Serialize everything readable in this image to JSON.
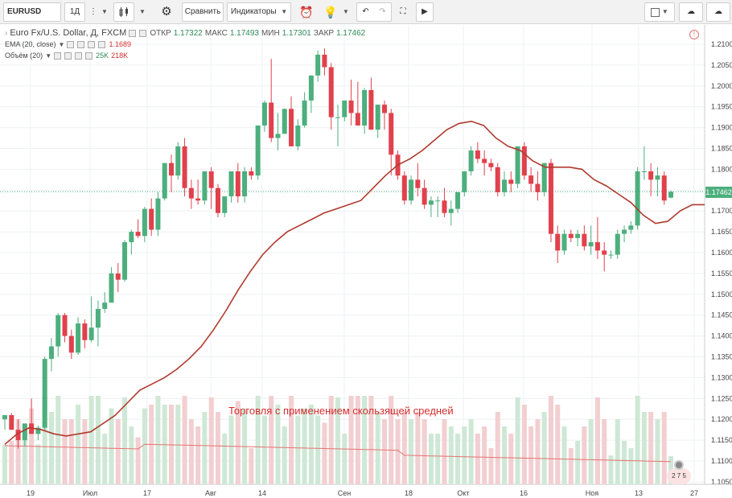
{
  "toolbar": {
    "symbol": "EURUSD",
    "interval": "1Д",
    "compare_label": "Сравнить",
    "indicators_label": "Индикаторы",
    "icons": [
      "menu-dots-icon",
      "candle-style-icon",
      "gear-icon",
      "alarm-add-icon",
      "lightbulb-icon",
      "undo-icon",
      "redo-icon",
      "fullscreen-icon",
      "play-icon",
      "layout-icon",
      "cloud-load-icon",
      "cloud-save-icon"
    ]
  },
  "legend": {
    "title": "Euro Fx/U.S. Dollar, Д, FXCM",
    "open_label": "ОТКР",
    "open": "1.17322",
    "high_label": "МАКС",
    "high": "1.17493",
    "low_label": "МИН",
    "low": "1.17301",
    "close_label": "ЗАКР",
    "close": "1.17462",
    "ema_label": "EMA (20, close)",
    "ema_value": "1.1689",
    "volume_label": "Объём (20)",
    "volume_up": "25K",
    "volume_down": "218K"
  },
  "annotation": "Торговля с применением скользящей средней",
  "events_badge": "2 7 5",
  "colors": {
    "up": "#4caf7d",
    "down": "#e0414c",
    "ema": "#b03a2e",
    "vol_up": "#cfe8d6",
    "vol_down": "#f2cfd1",
    "vol_ma": "#e57373",
    "grid": "#eef0f3"
  },
  "chart_data": {
    "type": "candlestick",
    "symbol": "Euro Fx/U.S. Dollar",
    "interval": "Д",
    "ylim": [
      1.104,
      1.212
    ],
    "y_ticks": [
      "1.21000",
      "1.20500",
      "1.20000",
      "1.19500",
      "1.19000",
      "1.18500",
      "1.18000",
      "1.17500",
      "1.17000",
      "1.16500",
      "1.16000",
      "1.15500",
      "1.15000",
      "1.14500",
      "1.14000",
      "1.13500",
      "1.13000",
      "1.12500",
      "1.12000",
      "1.11500",
      "1.11000",
      "1.10500"
    ],
    "x_ticks": [
      "19",
      "Июл",
      "17",
      "Авг",
      "14",
      "Сен",
      "18",
      "Окт",
      "16",
      "Ноя",
      "13",
      "27"
    ],
    "last_price": "1.17462",
    "ema_series": [
      1.114,
      1.1165,
      1.118,
      1.1175,
      1.1165,
      1.116,
      1.1165,
      1.117,
      1.119,
      1.121,
      1.124,
      1.127,
      1.1285,
      1.13,
      1.132,
      1.1345,
      1.1375,
      1.1415,
      1.146,
      1.151,
      1.1555,
      1.1595,
      1.1625,
      1.165,
      1.1665,
      1.168,
      1.1695,
      1.1705,
      1.1715,
      1.1725,
      1.1755,
      1.1785,
      1.181,
      1.1825,
      1.1845,
      1.187,
      1.1895,
      1.191,
      1.1915,
      1.1905,
      1.1875,
      1.1855,
      1.1845,
      1.182,
      1.1805,
      1.1805,
      1.1805,
      1.18,
      1.1775,
      1.176,
      1.174,
      1.172,
      1.169,
      1.167,
      1.1675,
      1.17,
      1.1715,
      1.1715
    ],
    "candles": [
      [
        1.12,
        1.121,
        1.1175,
        1.121
      ],
      [
        1.121,
        1.1215,
        1.1175,
        1.1175
      ],
      [
        1.1175,
        1.12,
        1.113,
        1.115
      ],
      [
        1.115,
        1.119,
        1.1135,
        1.119
      ],
      [
        1.119,
        1.125,
        1.1165,
        1.1165
      ],
      [
        1.1165,
        1.1185,
        1.115,
        1.118
      ],
      [
        1.118,
        1.135,
        1.1175,
        1.1345
      ],
      [
        1.1345,
        1.1395,
        1.1315,
        1.1375
      ],
      [
        1.1375,
        1.1455,
        1.135,
        1.145
      ],
      [
        1.145,
        1.1455,
        1.1385,
        1.14
      ],
      [
        1.14,
        1.1415,
        1.1345,
        1.136
      ],
      [
        1.136,
        1.1445,
        1.1355,
        1.143
      ],
      [
        1.143,
        1.144,
        1.137,
        1.139
      ],
      [
        1.139,
        1.1495,
        1.1385,
        1.142
      ],
      [
        1.142,
        1.1485,
        1.1375,
        1.1465
      ],
      [
        1.1465,
        1.1505,
        1.1455,
        1.148
      ],
      [
        1.148,
        1.1565,
        1.148,
        1.155
      ],
      [
        1.155,
        1.1575,
        1.1505,
        1.1535
      ],
      [
        1.1535,
        1.163,
        1.153,
        1.1625
      ],
      [
        1.1625,
        1.1655,
        1.1595,
        1.165
      ],
      [
        1.165,
        1.168,
        1.1635,
        1.164
      ],
      [
        1.164,
        1.171,
        1.1625,
        1.1705
      ],
      [
        1.1705,
        1.173,
        1.164,
        1.1655
      ],
      [
        1.1655,
        1.1745,
        1.164,
        1.173
      ],
      [
        1.173,
        1.1815,
        1.1725,
        1.1815
      ],
      [
        1.1815,
        1.1835,
        1.1745,
        1.1785
      ],
      [
        1.1785,
        1.1865,
        1.1775,
        1.1855
      ],
      [
        1.1855,
        1.1875,
        1.1735,
        1.1755
      ],
      [
        1.1755,
        1.1775,
        1.1705,
        1.173
      ],
      [
        1.173,
        1.1775,
        1.1715,
        1.1725
      ],
      [
        1.1725,
        1.1795,
        1.1715,
        1.1795
      ],
      [
        1.1795,
        1.1805,
        1.1705,
        1.1755
      ],
      [
        1.1755,
        1.1765,
        1.1685,
        1.1695
      ],
      [
        1.1695,
        1.1735,
        1.1685,
        1.1735
      ],
      [
        1.1735,
        1.1795,
        1.172,
        1.1795
      ],
      [
        1.1795,
        1.1815,
        1.172,
        1.1735
      ],
      [
        1.1735,
        1.1805,
        1.172,
        1.1795
      ],
      [
        1.1795,
        1.1805,
        1.1775,
        1.1785
      ],
      [
        1.1785,
        1.1905,
        1.1775,
        1.1905
      ],
      [
        1.1905,
        1.1965,
        1.189,
        1.196
      ],
      [
        1.196,
        1.2065,
        1.1865,
        1.1875
      ],
      [
        1.1875,
        1.1935,
        1.1845,
        1.1885
      ],
      [
        1.1885,
        1.1945,
        1.1885,
        1.1945
      ],
      [
        1.1945,
        1.1975,
        1.1855,
        1.1855
      ],
      [
        1.1855,
        1.192,
        1.1845,
        1.1905
      ],
      [
        1.1905,
        1.1985,
        1.19,
        1.1965
      ],
      [
        1.1965,
        1.2025,
        1.1935,
        1.2025
      ],
      [
        1.2025,
        1.2085,
        1.201,
        1.2075
      ],
      [
        1.2075,
        1.209,
        1.2025,
        1.2045
      ],
      [
        1.2045,
        1.2055,
        1.1895,
        1.1925
      ],
      [
        1.1925,
        1.1955,
        1.1855,
        1.1925
      ],
      [
        1.1925,
        1.1965,
        1.1915,
        1.1965
      ],
      [
        1.1965,
        1.2015,
        1.1905,
        1.1935
      ],
      [
        1.1935,
        1.201,
        1.1905,
        1.1905
      ],
      [
        1.1905,
        1.1995,
        1.1885,
        1.199
      ],
      [
        1.199,
        1.202,
        1.1895,
        1.1895
      ],
      [
        1.1895,
        1.1955,
        1.1875,
        1.1955
      ],
      [
        1.1955,
        1.1965,
        1.1895,
        1.1935
      ],
      [
        1.1935,
        1.1945,
        1.1785,
        1.1835
      ],
      [
        1.1835,
        1.1845,
        1.1775,
        1.1785
      ],
      [
        1.1785,
        1.1795,
        1.1715,
        1.1725
      ],
      [
        1.1725,
        1.1785,
        1.1715,
        1.1775
      ],
      [
        1.1775,
        1.1815,
        1.1735,
        1.1755
      ],
      [
        1.1755,
        1.1775,
        1.1705,
        1.1715
      ],
      [
        1.1715,
        1.1735,
        1.1685,
        1.1725
      ],
      [
        1.1725,
        1.1735,
        1.1685,
        1.1725
      ],
      [
        1.1725,
        1.1755,
        1.1685,
        1.1695
      ],
      [
        1.1695,
        1.1725,
        1.1665,
        1.1705
      ],
      [
        1.1705,
        1.1745,
        1.1695,
        1.1745
      ],
      [
        1.1745,
        1.1795,
        1.1735,
        1.1795
      ],
      [
        1.1795,
        1.1855,
        1.1785,
        1.1845
      ],
      [
        1.1845,
        1.1865,
        1.1815,
        1.1825
      ],
      [
        1.1825,
        1.1845,
        1.1785,
        1.1815
      ],
      [
        1.1815,
        1.1825,
        1.1795,
        1.1805
      ],
      [
        1.1805,
        1.1815,
        1.1735,
        1.1745
      ],
      [
        1.1745,
        1.1795,
        1.1735,
        1.1775
      ],
      [
        1.1775,
        1.1795,
        1.1745,
        1.1765
      ],
      [
        1.1765,
        1.1855,
        1.1755,
        1.1855
      ],
      [
        1.1855,
        1.1865,
        1.1775,
        1.1785
      ],
      [
        1.1785,
        1.1805,
        1.1745,
        1.1765
      ],
      [
        1.1765,
        1.1795,
        1.1725,
        1.1745
      ],
      [
        1.1745,
        1.1815,
        1.1735,
        1.1815
      ],
      [
        1.1815,
        1.1825,
        1.1625,
        1.1645
      ],
      [
        1.1645,
        1.1665,
        1.1575,
        1.1605
      ],
      [
        1.1605,
        1.1655,
        1.1595,
        1.1645
      ],
      [
        1.1645,
        1.1655,
        1.1625,
        1.1635
      ],
      [
        1.1635,
        1.1655,
        1.1615,
        1.1645
      ],
      [
        1.1645,
        1.1665,
        1.1605,
        1.1615
      ],
      [
        1.1615,
        1.1665,
        1.1595,
        1.1625
      ],
      [
        1.1625,
        1.1685,
        1.1585,
        1.1605
      ],
      [
        1.1605,
        1.1625,
        1.1555,
        1.1595
      ],
      [
        1.1595,
        1.1605,
        1.1585,
        1.1595
      ],
      [
        1.1595,
        1.1655,
        1.1585,
        1.1645
      ],
      [
        1.1645,
        1.1665,
        1.1625,
        1.1655
      ],
      [
        1.1655,
        1.1675,
        1.1645,
        1.1665
      ],
      [
        1.1665,
        1.1805,
        1.1655,
        1.1795
      ],
      [
        1.1795,
        1.1855,
        1.1775,
        1.1795
      ],
      [
        1.1795,
        1.1815,
        1.1735,
        1.1775
      ],
      [
        1.1775,
        1.1805,
        1.1735,
        1.1785
      ],
      [
        1.1785,
        1.1795,
        1.1715,
        1.1725
      ],
      [
        1.1732,
        1.1749,
        1.173,
        1.1746
      ]
    ],
    "volume_ma_level": "medium"
  }
}
